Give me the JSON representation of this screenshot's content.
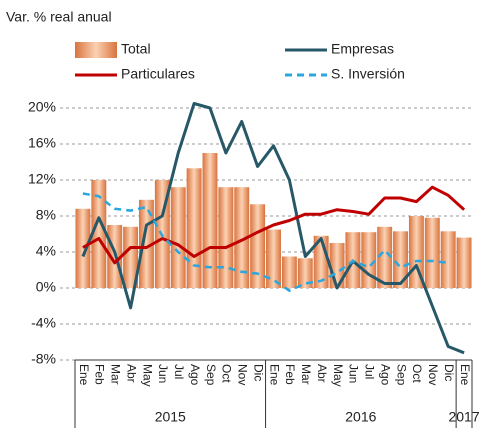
{
  "chart_data": {
    "type": "bar_line",
    "subtitle": "Var. % real anual",
    "categories": [
      "Ene",
      "Feb",
      "Mar",
      "Abr",
      "May",
      "Jun",
      "Jul",
      "Ago",
      "Sep",
      "Oct",
      "Nov",
      "Dic",
      "Ene",
      "Feb",
      "Mar",
      "Abr",
      "May",
      "Jun",
      "Jul",
      "Ago",
      "Sep",
      "Oct",
      "Nov",
      "Dic",
      "Ene"
    ],
    "year_groups": [
      {
        "label": "2015",
        "months": 12
      },
      {
        "label": "2016",
        "months": 12
      },
      {
        "label": "2017",
        "months": 1
      }
    ],
    "series": [
      {
        "name": "Total",
        "kind": "bar",
        "color": "#e8935f",
        "values": [
          8.8,
          12,
          7,
          6.8,
          9.8,
          12,
          11.2,
          13.3,
          15,
          11.2,
          11.2,
          9.3,
          6.5,
          3.5,
          3.3,
          5.8,
          5,
          6.2,
          6.2,
          6.8,
          6.3,
          8,
          7.8,
          6.3,
          5.6
        ]
      },
      {
        "name": "Empresas",
        "kind": "line",
        "color": "#275868",
        "values": [
          3.5,
          7.8,
          4,
          -2.2,
          7,
          8,
          15,
          20.5,
          20,
          15,
          18.5,
          13.5,
          15.8,
          12,
          3.5,
          5.5,
          0,
          3,
          1.5,
          0.5,
          0.5,
          2.5,
          -2,
          -6.5,
          -7.2
        ]
      },
      {
        "name": "Particulares",
        "kind": "line",
        "color": "#c00000",
        "values": [
          4.5,
          5.5,
          2.8,
          4.5,
          4.5,
          5.5,
          4.8,
          3.5,
          4.5,
          4.5,
          5.3,
          6.2,
          7,
          7.5,
          8.2,
          8.2,
          8.7,
          8.5,
          8.2,
          10,
          10,
          9.6,
          11.2,
          10.3,
          8.7
        ]
      },
      {
        "name": "S. Inversión",
        "kind": "dashed",
        "color": "#2aa7df",
        "values": [
          10.5,
          10.2,
          8.8,
          8.6,
          9,
          5.8,
          4,
          2.5,
          2.3,
          2.3,
          1.8,
          1.6,
          0.9,
          -0.3,
          0.5,
          0.8,
          1.7,
          3,
          2.3,
          4.2,
          2.3,
          3,
          3,
          2.8,
          null
        ]
      }
    ],
    "ylim": [
      -8,
      20
    ],
    "yticks": [
      {
        "value": -8,
        "label": "-8%"
      },
      {
        "value": -4,
        "label": "-4%"
      },
      {
        "value": 0,
        "label": "0%"
      },
      {
        "value": 4,
        "label": "4%"
      },
      {
        "value": 8,
        "label": "8%"
      },
      {
        "value": 12,
        "label": "12%"
      },
      {
        "value": 16,
        "label": "16%"
      },
      {
        "value": 20,
        "label": "20%"
      }
    ],
    "grid": true
  }
}
